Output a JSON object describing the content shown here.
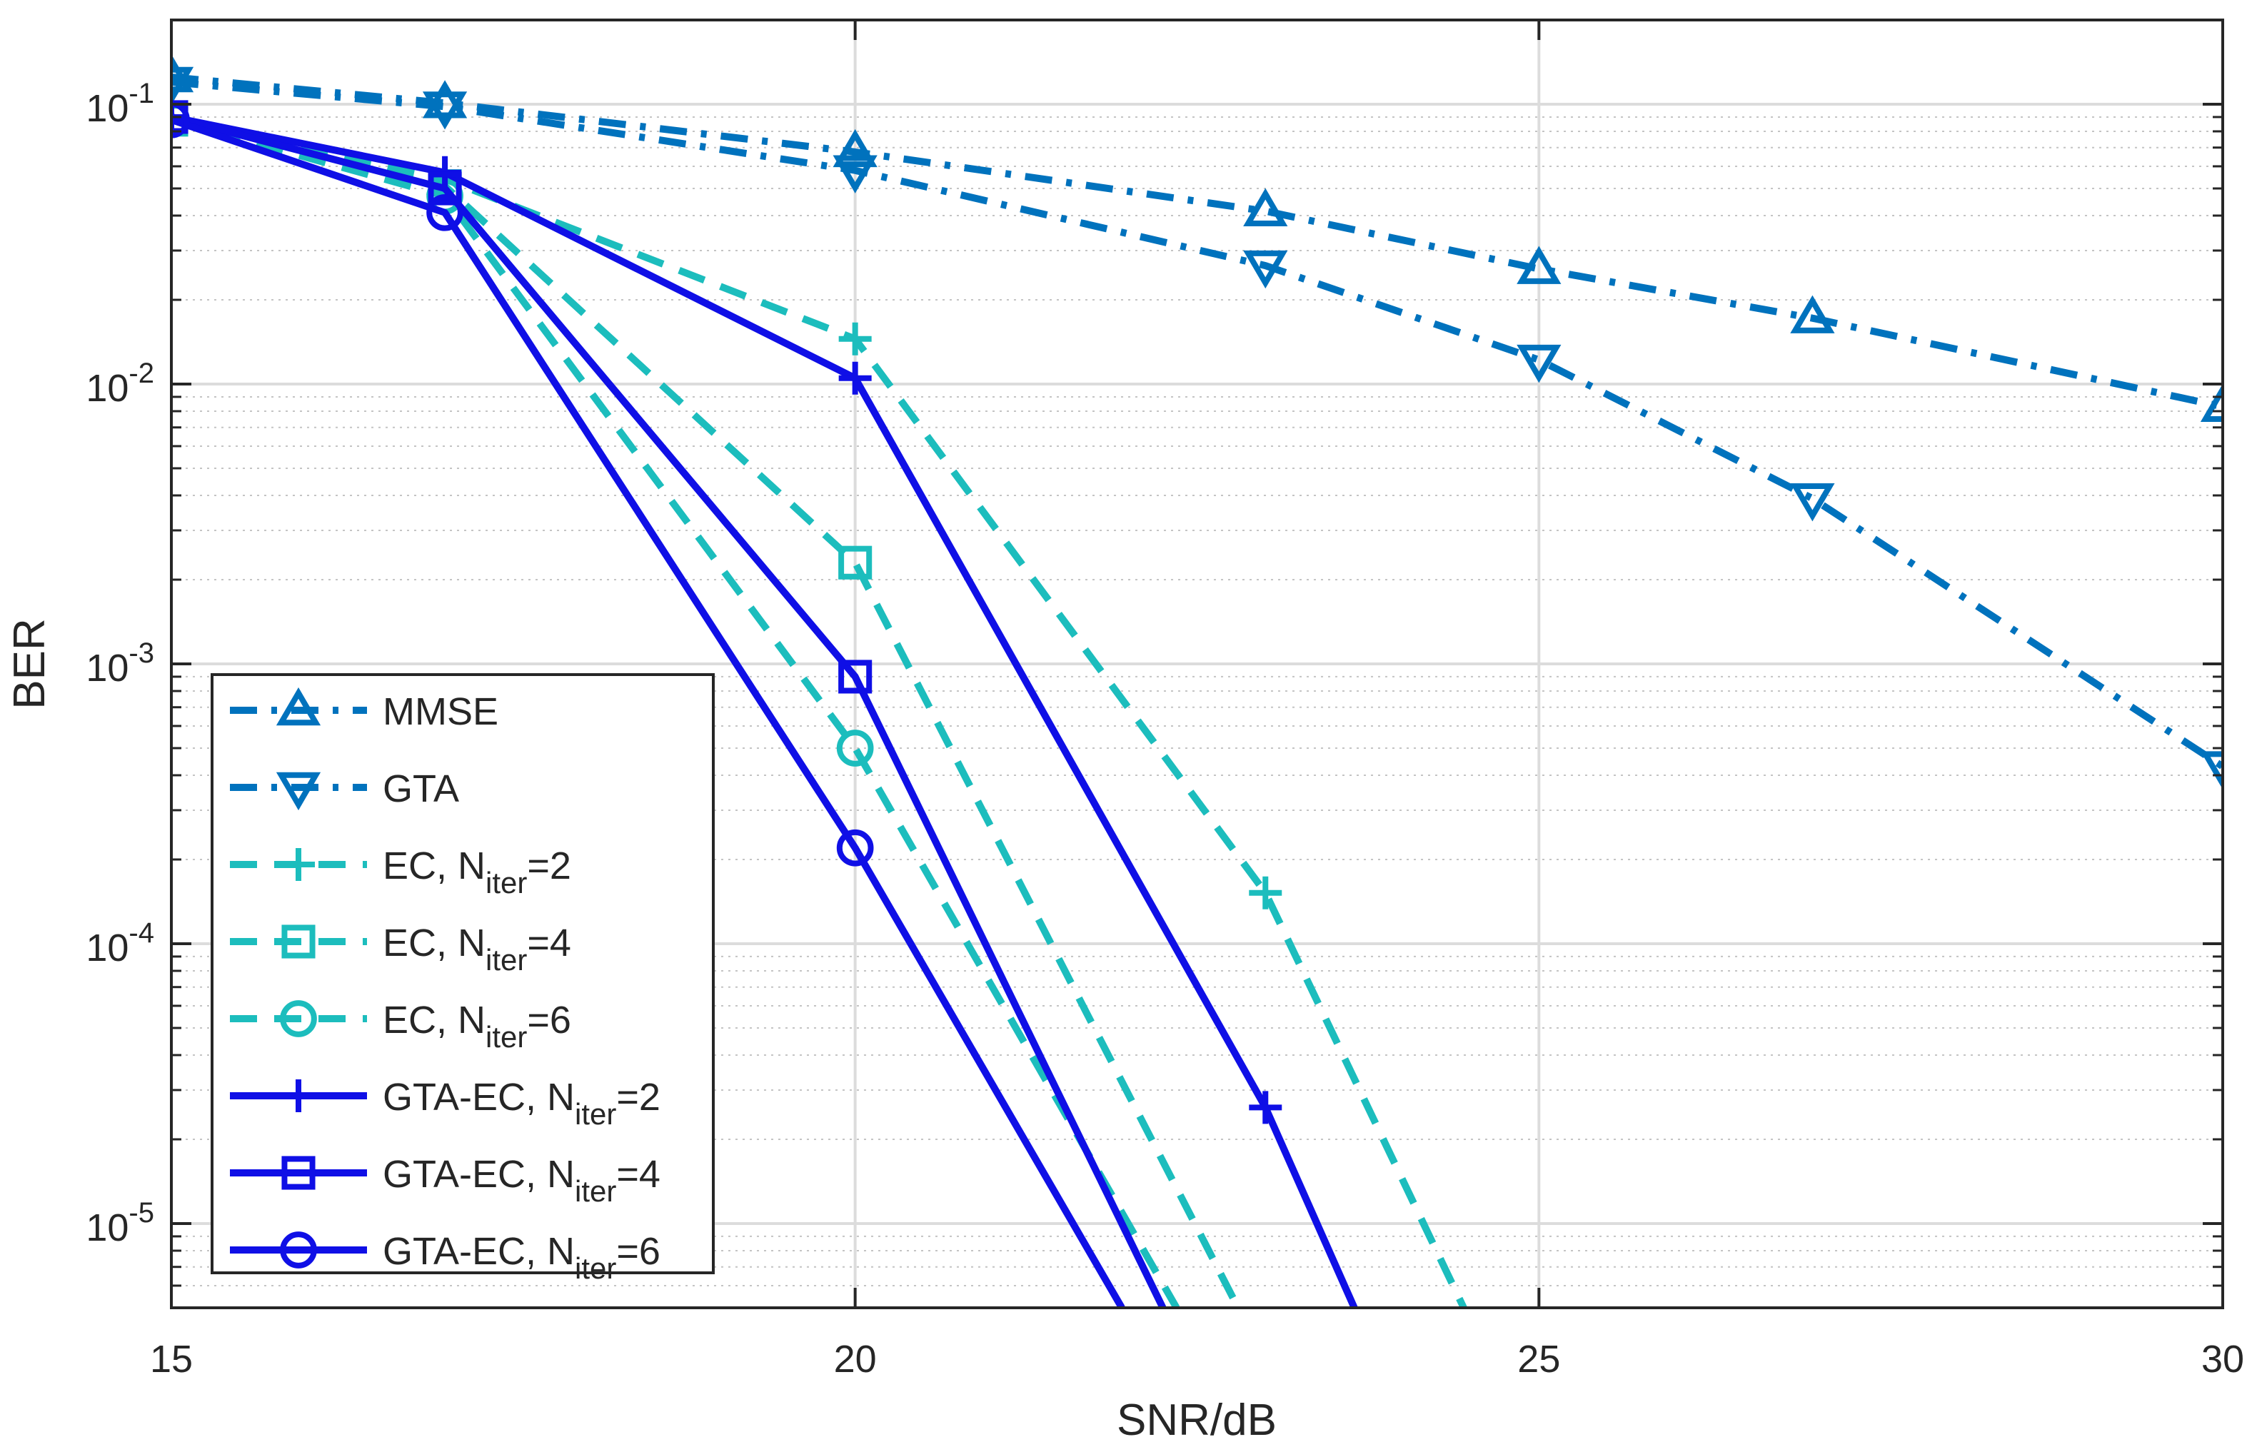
{
  "chart_data": {
    "type": "line",
    "title": "",
    "xlabel": "SNR/dB",
    "ylabel": "BER",
    "xlim": [
      15,
      30
    ],
    "ylim": [
      5e-06,
      0.2
    ],
    "yscale": "log",
    "grid": true,
    "minor_grid": true,
    "legend_location": "bottom-left",
    "x_ticks": [
      15,
      20,
      25,
      30
    ],
    "x_tick_labels": [
      "15",
      "20",
      "25",
      "30"
    ],
    "y_ticks": [
      0.1,
      0.01,
      0.001,
      0.0001,
      1e-05
    ],
    "y_tick_labels": [
      {
        "base": "10",
        "exp": "-1"
      },
      {
        "base": "10",
        "exp": "-2"
      },
      {
        "base": "10",
        "exp": "-3"
      },
      {
        "base": "10",
        "exp": "-4"
      },
      {
        "base": "10",
        "exp": "-5"
      }
    ],
    "series": [
      {
        "name": "MMSE",
        "label_main": "MMSE",
        "label_sub": "",
        "label_tail": "",
        "color": "#0072BD",
        "line": "dashdot",
        "marker": "triangle-up",
        "x": [
          15,
          17,
          20,
          23,
          25,
          27,
          30
        ],
        "y": [
          0.125,
          0.101,
          0.0675,
          0.0415,
          0.0258,
          0.0172,
          0.0083
        ]
      },
      {
        "name": "GTA",
        "label_main": "GTA",
        "label_sub": "",
        "label_tail": "",
        "color": "#0072BD",
        "line": "dashdot",
        "marker": "triangle-down",
        "x": [
          15,
          17,
          20,
          23,
          25,
          27,
          30
        ],
        "y": [
          0.12,
          0.098,
          0.058,
          0.0265,
          0.0122,
          0.0039,
          0.00043
        ]
      },
      {
        "name": "EC, N_iter=2",
        "label_main": "EC, N",
        "label_sub": "iter",
        "label_tail": "=2",
        "color": "#1CBDBD",
        "line": "dashed",
        "marker": "plus",
        "x": [
          15,
          17,
          20,
          23,
          24.45
        ],
        "y": [
          0.088,
          0.054,
          0.0145,
          0.000152,
          5e-06
        ]
      },
      {
        "name": "EC, N_iter=4",
        "label_main": "EC, N",
        "label_sub": "iter",
        "label_tail": "=4",
        "color": "#1CBDBD",
        "line": "dashed",
        "marker": "square",
        "x": [
          15,
          17,
          20,
          22.8
        ],
        "y": [
          0.088,
          0.051,
          0.0023,
          5e-06
        ]
      },
      {
        "name": "EC, N_iter=6",
        "label_main": "EC, N",
        "label_sub": "iter",
        "label_tail": "=6",
        "color": "#1CBDBD",
        "line": "dashed",
        "marker": "circle",
        "x": [
          15,
          17,
          20,
          22.35
        ],
        "y": [
          0.088,
          0.047,
          0.0005,
          5e-06
        ]
      },
      {
        "name": "GTA-EC, N_iter=2",
        "label_main": "GTA-EC, N",
        "label_sub": "iter",
        "label_tail": "=2",
        "color": "#0F0FE6",
        "line": "solid",
        "marker": "plus",
        "x": [
          15,
          17,
          20,
          23,
          23.65
        ],
        "y": [
          0.09,
          0.057,
          0.0105,
          2.6e-05,
          5e-06
        ]
      },
      {
        "name": "GTA-EC, N_iter=4",
        "label_main": "GTA-EC, N",
        "label_sub": "iter",
        "label_tail": "=4",
        "color": "#0F0FE6",
        "line": "solid",
        "marker": "square",
        "x": [
          15,
          17,
          20,
          22.25
        ],
        "y": [
          0.09,
          0.05,
          0.0009,
          5e-06
        ]
      },
      {
        "name": "GTA-EC, N_iter=6",
        "label_main": "GTA-EC, N",
        "label_sub": "iter",
        "label_tail": "=6",
        "color": "#0F0FE6",
        "line": "solid",
        "marker": "circle",
        "x": [
          15,
          17,
          20,
          21.95
        ],
        "y": [
          0.088,
          0.041,
          0.00022,
          5e-06
        ]
      }
    ]
  }
}
